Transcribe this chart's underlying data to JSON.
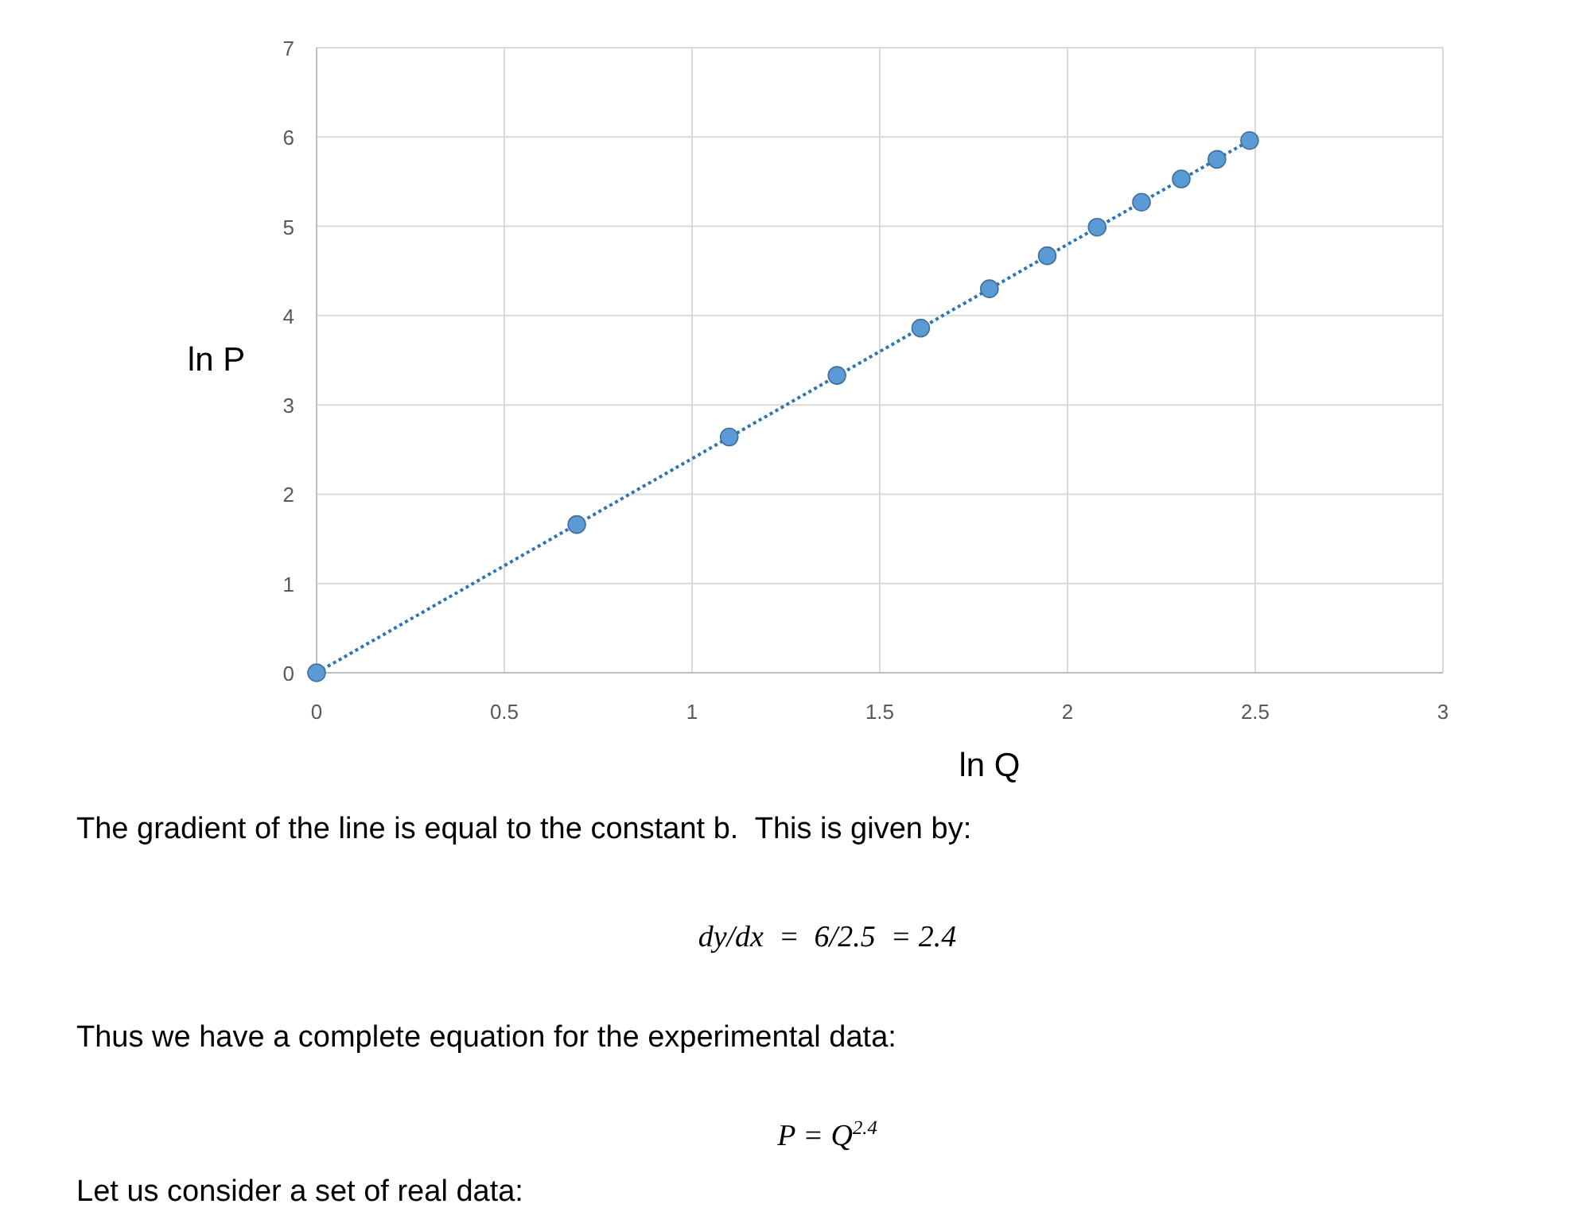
{
  "chart_data": {
    "type": "scatter",
    "xlabel": "ln Q",
    "ylabel": "ln P",
    "xlim": [
      0,
      3
    ],
    "ylim": [
      0,
      7
    ],
    "xticks": [
      0,
      0.5,
      1,
      1.5,
      2,
      2.5,
      3
    ],
    "yticks": [
      0,
      1,
      2,
      3,
      4,
      5,
      6,
      7
    ],
    "grid": true,
    "series": [
      {
        "color": "#5b9bd5",
        "marker": "circle",
        "x": [
          0,
          0.693,
          1.099,
          1.386,
          1.609,
          1.792,
          1.946,
          2.079,
          2.197,
          2.303,
          2.398,
          2.485
        ],
        "values": [
          0,
          1.66,
          2.64,
          3.33,
          3.86,
          4.3,
          4.67,
          4.99,
          5.27,
          5.53,
          5.75,
          5.96
        ]
      },
      {
        "type": "line",
        "color": "#2e75b6",
        "line_style": "dotted",
        "marker": "none",
        "x": [
          0,
          2.485
        ],
        "values": [
          0,
          5.96
        ]
      }
    ],
    "annotations": [
      "The gradient of the line is equal to the constant b.  This is given by:",
      "dy/dx  =  6/2.5  = 2.4",
      "Thus we have a complete equation for the experimental data:",
      "P = Q$^{2.4}$",
      "Let us consider a set of real data:"
    ]
  }
}
